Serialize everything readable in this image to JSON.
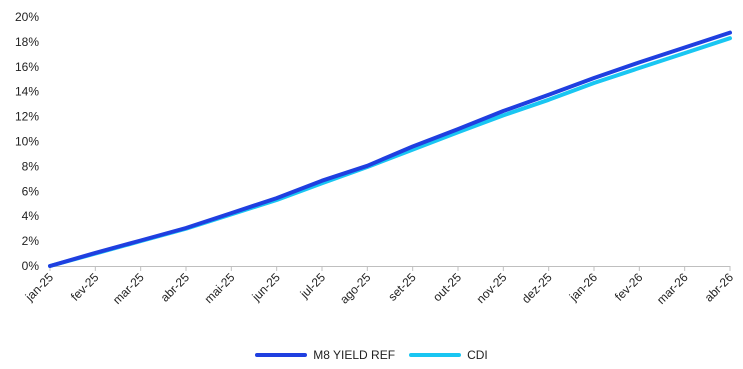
{
  "chart_data": {
    "type": "line",
    "title": "",
    "xlabel": "",
    "ylabel": "",
    "x_ticks": [
      "jan-25",
      "fev-25",
      "mar-25",
      "abr-25",
      "mai-25",
      "jun-25",
      "jul-25",
      "ago-25",
      "set-25",
      "out-25",
      "nov-25",
      "dez-25",
      "jan-26",
      "fev-26",
      "mar-26",
      "abr-26"
    ],
    "y_ticks": [
      "0%",
      "2%",
      "4%",
      "6%",
      "8%",
      "10%",
      "12%",
      "14%",
      "16%",
      "18%",
      "20%"
    ],
    "ylim": [
      0,
      20
    ],
    "grid": false,
    "legend_position": "bottom",
    "series": [
      {
        "name": "M8 YIELD REF",
        "color": "#1f3fe0",
        "values": [
          0.0,
          1.05,
          2.05,
          3.05,
          4.25,
          5.45,
          6.85,
          8.05,
          9.6,
          11.0,
          12.45,
          13.75,
          15.1,
          16.35,
          17.55,
          18.75
        ]
      },
      {
        "name": "CDI",
        "color": "#19c6f2",
        "values": [
          0.0,
          1.0,
          2.0,
          3.0,
          4.15,
          5.3,
          6.65,
          7.95,
          9.35,
          10.75,
          12.1,
          13.35,
          14.7,
          15.9,
          17.1,
          18.3
        ]
      }
    ]
  }
}
